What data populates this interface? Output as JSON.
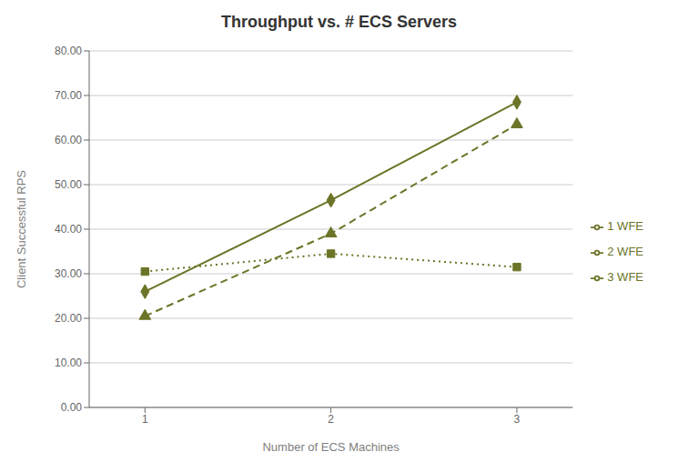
{
  "chart_data": {
    "type": "line",
    "title": "Throughput vs. # ECS Servers",
    "x_label": "Number of ECS Machines",
    "y_label": "Client Successful  RPS",
    "x": [
      1,
      2,
      3
    ],
    "series": [
      {
        "name": "1 WFE",
        "color": "#6b7427",
        "values": [
          30.5,
          34.5,
          31.5
        ],
        "marker": "square",
        "line_style": "dotted"
      },
      {
        "name": "2 WFE",
        "color": "#6b7427",
        "values": [
          26.0,
          46.5,
          68.5
        ],
        "marker": "diamond",
        "line_style": "solid"
      },
      {
        "name": "3 WFE",
        "color": "#6b7427",
        "values": [
          20.5,
          39.0,
          63.5
        ],
        "marker": "triangle",
        "line_style": "dashed"
      }
    ],
    "xlim": [
      0.7,
      3.3
    ],
    "xticks": [
      1,
      2,
      3
    ],
    "ylim": [
      0,
      80
    ],
    "yticks": [
      {
        "value": 0,
        "label": "0.00"
      },
      {
        "value": 10,
        "label": "10.00"
      },
      {
        "value": 20,
        "label": "20.00"
      },
      {
        "value": 30,
        "label": "30.00"
      },
      {
        "value": 40,
        "label": "40.00"
      },
      {
        "value": 50,
        "label": "50.00"
      },
      {
        "value": 60,
        "label": "60.00"
      },
      {
        "value": 70,
        "label": "70.00"
      },
      {
        "value": 80,
        "label": "80.00"
      }
    ],
    "grid": "y",
    "legend": "right"
  }
}
